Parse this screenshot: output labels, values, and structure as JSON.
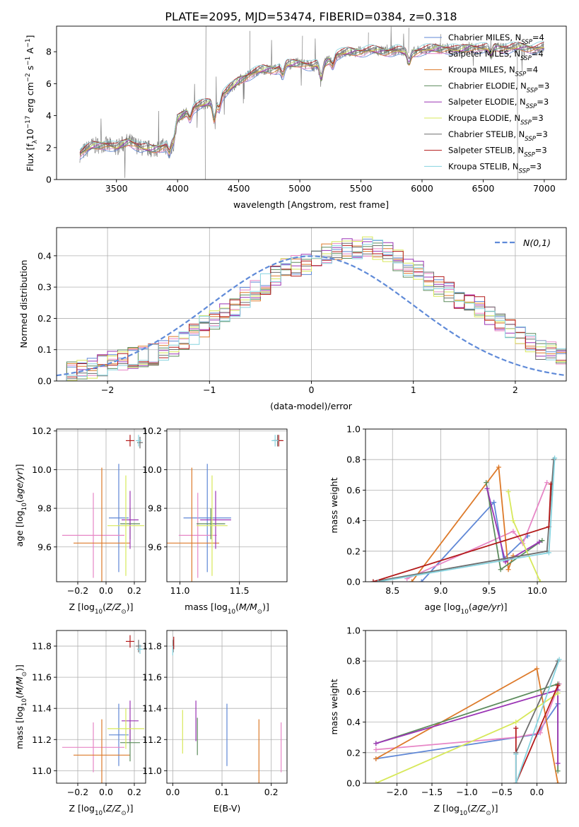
{
  "title": "PLATE=2095, MJD=53474, FIBERID=0384, z=0.318",
  "colors": {
    "Chabrier MILES": "#5f87d6",
    "Salpeter MILES": "#e786c6",
    "Kroupa MILES": "#dd7a2a",
    "Chabrier ELODIE": "#5d8c5d",
    "Salpeter ELODIE": "#9b35b5",
    "Kroupa ELODIE": "#d7e85a",
    "Chabrier STELIB": "#6e6e6e",
    "Salpeter STELIB": "#b31a1a",
    "Kroupa STELIB": "#86d3df",
    "data": "#808080",
    "normal": "#5f8ad8"
  },
  "legend": [
    {
      "model": "Chabrier MILES",
      "prefix": "Chabrier MILES, N",
      "sub": "SSP",
      "suffix": "=4"
    },
    {
      "model": "Salpeter MILES",
      "prefix": "Salpeter MILES, N",
      "sub": "SSP",
      "suffix": "=4"
    },
    {
      "model": "Kroupa MILES",
      "prefix": "Kroupa MILES, N",
      "sub": "SSP",
      "suffix": "=4"
    },
    {
      "model": "Chabrier ELODIE",
      "prefix": "Chabrier ELODIE, N",
      "sub": "SSP",
      "suffix": "=3"
    },
    {
      "model": "Salpeter ELODIE",
      "prefix": "Salpeter ELODIE, N",
      "sub": "SSP",
      "suffix": "=3"
    },
    {
      "model": "Kroupa ELODIE",
      "prefix": "Kroupa ELODIE, N",
      "sub": "SSP",
      "suffix": "=3"
    },
    {
      "model": "Chabrier STELIB",
      "prefix": "Chabrier STELIB, N",
      "sub": "SSP",
      "suffix": "=3"
    },
    {
      "model": "Salpeter STELIB",
      "prefix": "Salpeter STELIB, N",
      "sub": "SSP",
      "suffix": "=3"
    },
    {
      "model": "Kroupa STELIB",
      "prefix": "Kroupa STELIB, N",
      "sub": "SSP",
      "suffix": "=3"
    }
  ],
  "chart_data": [
    {
      "id": "spectrum",
      "type": "line",
      "xlabel": "wavelength [Angstrom, rest frame]",
      "ylabel": "Flux [f_λ 10^-17 erg cm^-2 s^-1 A^-1]",
      "xlim": [
        3010,
        7180
      ],
      "ylim": [
        0,
        9.6
      ],
      "xticks": [
        3500,
        4000,
        4500,
        5000,
        5500,
        6000,
        6500,
        7000
      ],
      "yticks": [
        0,
        2,
        4,
        6,
        8
      ],
      "continuum": [
        [
          3200,
          1.6
        ],
        [
          3300,
          2.1
        ],
        [
          3400,
          2.2
        ],
        [
          3500,
          2.0
        ],
        [
          3600,
          2.4
        ],
        [
          3700,
          2.0
        ],
        [
          3800,
          1.9
        ],
        [
          3900,
          2.1
        ],
        [
          3950,
          2.7
        ],
        [
          4000,
          3.8
        ],
        [
          4100,
          4.4
        ],
        [
          4200,
          4.7
        ],
        [
          4300,
          4.9
        ],
        [
          4400,
          5.5
        ],
        [
          4500,
          6.2
        ],
        [
          4600,
          6.6
        ],
        [
          4700,
          6.9
        ],
        [
          4800,
          6.9
        ],
        [
          4900,
          7.2
        ],
        [
          5000,
          7.3
        ],
        [
          5100,
          7.1
        ],
        [
          5200,
          7.3
        ],
        [
          5300,
          7.8
        ],
        [
          5400,
          8.0
        ],
        [
          5500,
          8.0
        ],
        [
          5600,
          8.1
        ],
        [
          5700,
          8.0
        ],
        [
          5800,
          8.1
        ],
        [
          5900,
          7.9
        ],
        [
          6000,
          8.1
        ],
        [
          6100,
          8.2
        ],
        [
          6200,
          8.2
        ],
        [
          6300,
          8.1
        ],
        [
          6400,
          8.3
        ],
        [
          6500,
          8.2
        ],
        [
          6600,
          8.3
        ],
        [
          6700,
          8.2
        ],
        [
          6800,
          8.3
        ],
        [
          6900,
          8.2
        ],
        [
          7000,
          8.3
        ]
      ],
      "absorption": [
        [
          3934,
          0.9
        ],
        [
          3968,
          0.8
        ],
        [
          4102,
          0.6
        ],
        [
          4300,
          1.2
        ],
        [
          4340,
          0.7
        ],
        [
          4861,
          0.6
        ],
        [
          5175,
          1.0
        ],
        [
          5270,
          0.5
        ],
        [
          5893,
          0.6
        ],
        [
          6563,
          0.5
        ]
      ],
      "spikes": [
        [
          4230,
          9.6
        ],
        [
          4225,
          0.0
        ],
        [
          5020,
          9.0
        ],
        [
          6780,
          0.0
        ],
        [
          4590,
          9.3
        ],
        [
          5560,
          9.2
        ],
        [
          5890,
          9.5
        ],
        [
          6150,
          9.1
        ]
      ]
    },
    {
      "id": "residuals",
      "type": "histogram",
      "xlabel": "(data-model)/error",
      "ylabel": "Normed distribution",
      "xlim": [
        -2.5,
        2.5
      ],
      "ylim": [
        0,
        0.49
      ],
      "xticks": [
        -2,
        -1,
        0,
        1,
        2
      ],
      "yticks": [
        0,
        0.1,
        0.2,
        0.3,
        0.4
      ],
      "bin_width": 0.1,
      "legend_label": "N(0,1)",
      "base_bins": [
        0.02,
        0.03,
        0.035,
        0.04,
        0.05,
        0.06,
        0.065,
        0.075,
        0.08,
        0.085,
        0.095,
        0.11,
        0.13,
        0.15,
        0.175,
        0.19,
        0.215,
        0.24,
        0.265,
        0.29,
        0.31,
        0.335,
        0.36,
        0.37,
        0.375,
        0.39,
        0.41,
        0.42,
        0.42,
        0.425,
        0.43,
        0.42,
        0.41,
        0.385,
        0.365,
        0.35,
        0.32,
        0.3,
        0.285,
        0.265,
        0.25,
        0.235,
        0.215,
        0.185,
        0.17,
        0.14,
        0.12,
        0.1,
        0.09,
        0.075
      ]
    },
    {
      "id": "age-Z",
      "type": "errorbar",
      "xlabel": "Z [log10(Z/Z⊙)]",
      "ylabel": "age [log10(age/yr)]",
      "xlim": [
        -0.35,
        0.28
      ],
      "ylim": [
        9.42,
        10.21
      ],
      "xticks": [
        -0.2,
        0.0,
        0.2
      ],
      "yticks": [
        9.6,
        9.8,
        10.0,
        10.2
      ],
      "points": [
        {
          "model": "Chabrier MILES",
          "x": 0.09,
          "y": 9.75,
          "xerr": 0.07,
          "yerr": 0.28
        },
        {
          "model": "Salpeter MILES",
          "x": -0.09,
          "y": 9.66,
          "xerr": 0.22,
          "yerr": 0.22
        },
        {
          "model": "Kroupa MILES",
          "x": -0.03,
          "y": 9.62,
          "xerr": 0.2,
          "yerr": 0.39
        },
        {
          "model": "Chabrier ELODIE",
          "x": 0.17,
          "y": 9.72,
          "xerr": 0.07,
          "yerr": 0.08
        },
        {
          "model": "Salpeter ELODIE",
          "x": 0.17,
          "y": 9.74,
          "xerr": 0.06,
          "yerr": 0.15
        },
        {
          "model": "Kroupa ELODIE",
          "x": 0.14,
          "y": 9.71,
          "xerr": 0.13,
          "yerr": 0.26
        },
        {
          "model": "Chabrier STELIB",
          "x": 0.24,
          "y": 10.14,
          "xerr": 0.02,
          "yerr": 0.03
        },
        {
          "model": "Salpeter STELIB",
          "x": 0.17,
          "y": 10.15,
          "xerr": 0.03,
          "yerr": 0.03
        },
        {
          "model": "Kroupa STELIB",
          "x": 0.23,
          "y": 10.15,
          "xerr": 0.02,
          "yerr": 0.03
        }
      ]
    },
    {
      "id": "age-mass",
      "type": "errorbar",
      "xlabel": "mass [log10(M/M⊙)]",
      "ylabel": "",
      "xlim": [
        10.89,
        11.9
      ],
      "ylim": [
        9.42,
        10.21
      ],
      "xticks": [
        11.0,
        11.5
      ],
      "yticks": [
        9.6,
        9.8,
        10.0,
        10.2
      ],
      "points": [
        {
          "model": "Chabrier MILES",
          "x": 11.23,
          "y": 9.75,
          "xerr": 0.2,
          "yerr": 0.28
        },
        {
          "model": "Salpeter MILES",
          "x": 11.15,
          "y": 9.66,
          "xerr": 0.16,
          "yerr": 0.22
        },
        {
          "model": "Kroupa MILES",
          "x": 11.1,
          "y": 9.62,
          "xerr": 0.23,
          "yerr": 0.39
        },
        {
          "model": "Chabrier ELODIE",
          "x": 11.26,
          "y": 9.72,
          "xerr": 0.12,
          "yerr": 0.08
        },
        {
          "model": "Salpeter ELODIE",
          "x": 11.3,
          "y": 9.74,
          "xerr": 0.13,
          "yerr": 0.15
        },
        {
          "model": "Kroupa ELODIE",
          "x": 11.27,
          "y": 9.71,
          "xerr": 0.13,
          "yerr": 0.26
        },
        {
          "model": "Chabrier STELIB",
          "x": 11.82,
          "y": 10.15,
          "xerr": 0.04,
          "yerr": 0.03
        },
        {
          "model": "Salpeter STELIB",
          "x": 11.83,
          "y": 10.15,
          "xerr": 0.04,
          "yerr": 0.03
        },
        {
          "model": "Kroupa STELIB",
          "x": 11.8,
          "y": 10.15,
          "xerr": 0.03,
          "yerr": 0.03
        }
      ]
    },
    {
      "id": "massweight-age",
      "type": "line",
      "xlabel": "age [log10(age/yr)]",
      "ylabel": "mass weight",
      "xlim": [
        8.22,
        10.3
      ],
      "ylim": [
        0,
        1.0
      ],
      "xticks": [
        8.5,
        9.0,
        9.5,
        10.0
      ],
      "yticks": [
        0,
        0.2,
        0.4,
        0.6,
        0.8,
        1.0
      ],
      "series": [
        {
          "model": "Chabrier MILES",
          "points": [
            [
              8.8,
              0.0
            ],
            [
              9.55,
              0.52
            ],
            [
              9.65,
              0.15
            ],
            [
              9.9,
              0.3
            ]
          ]
        },
        {
          "model": "Salpeter MILES",
          "points": [
            [
              8.65,
              0.02
            ],
            [
              9.75,
              0.33
            ],
            [
              9.85,
              0.25
            ],
            [
              10.1,
              0.65
            ]
          ]
        },
        {
          "model": "Kroupa MILES",
          "points": [
            [
              8.7,
              0.0
            ],
            [
              9.6,
              0.75
            ],
            [
              9.7,
              0.08
            ],
            [
              9.75,
              0.17
            ]
          ]
        },
        {
          "model": "Chabrier ELODIE",
          "points": [
            [
              9.47,
              0.65
            ],
            [
              9.62,
              0.08
            ],
            [
              10.05,
              0.27
            ]
          ]
        },
        {
          "model": "Salpeter ELODIE",
          "points": [
            [
              9.48,
              0.61
            ],
            [
              9.67,
              0.13
            ],
            [
              10.02,
              0.26
            ]
          ]
        },
        {
          "model": "Kroupa ELODIE",
          "points": [
            [
              9.7,
              0.59
            ],
            [
              9.75,
              0.4
            ],
            [
              10.03,
              0.0
            ]
          ]
        },
        {
          "model": "Chabrier STELIB",
          "points": [
            [
              8.3,
              0.0
            ],
            [
              10.1,
              0.2
            ],
            [
              10.17,
              0.8
            ]
          ]
        },
        {
          "model": "Salpeter STELIB",
          "points": [
            [
              8.3,
              0.0
            ],
            [
              10.12,
              0.36
            ],
            [
              10.14,
              0.64
            ]
          ]
        },
        {
          "model": "Kroupa STELIB",
          "points": [
            [
              8.35,
              0.0
            ],
            [
              10.12,
              0.19
            ],
            [
              10.18,
              0.81
            ]
          ]
        }
      ]
    },
    {
      "id": "mass-Z",
      "type": "errorbar",
      "xlabel": "Z [log10(Z/Z⊙)]",
      "ylabel": "mass [log10(M/M⊙)]",
      "xlim": [
        -0.35,
        0.28
      ],
      "ylim": [
        10.92,
        11.9
      ],
      "xticks": [
        -0.2,
        0.0,
        0.2
      ],
      "yticks": [
        11.0,
        11.2,
        11.4,
        11.6,
        11.8
      ],
      "points": [
        {
          "model": "Chabrier MILES",
          "x": 0.09,
          "y": 11.23,
          "xerr": 0.07,
          "yerr": 0.2
        },
        {
          "model": "Salpeter MILES",
          "x": -0.09,
          "y": 11.15,
          "xerr": 0.22,
          "yerr": 0.16
        },
        {
          "model": "Kroupa MILES",
          "x": -0.03,
          "y": 11.1,
          "xerr": 0.2,
          "yerr": 0.23
        },
        {
          "model": "Chabrier ELODIE",
          "x": 0.17,
          "y": 11.18,
          "xerr": 0.07,
          "yerr": 0.12
        },
        {
          "model": "Salpeter ELODIE",
          "x": 0.17,
          "y": 11.32,
          "xerr": 0.06,
          "yerr": 0.13
        },
        {
          "model": "Kroupa ELODIE",
          "x": 0.14,
          "y": 11.27,
          "xerr": 0.13,
          "yerr": 0.13
        },
        {
          "model": "Chabrier STELIB",
          "x": 0.23,
          "y": 11.8,
          "xerr": 0.02,
          "yerr": 0.04
        },
        {
          "model": "Salpeter STELIB",
          "x": 0.17,
          "y": 11.83,
          "xerr": 0.03,
          "yerr": 0.04
        },
        {
          "model": "Kroupa STELIB",
          "x": 0.24,
          "y": 11.78,
          "xerr": 0.02,
          "yerr": 0.03
        }
      ]
    },
    {
      "id": "mass-ebv",
      "type": "errorbar",
      "xlabel": "E(B-V)",
      "ylabel": "",
      "xlim": [
        -0.012,
        0.232
      ],
      "ylim": [
        10.92,
        11.9
      ],
      "xticks": [
        0.0,
        0.1,
        0.2
      ],
      "yticks": [
        11.0,
        11.2,
        11.4,
        11.6,
        11.8
      ],
      "points": [
        {
          "model": "Chabrier MILES",
          "x": 0.11,
          "y": 11.23,
          "xerr": 0,
          "yerr": 0.2
        },
        {
          "model": "Salpeter MILES",
          "x": 0.22,
          "y": 11.15,
          "xerr": 0,
          "yerr": 0.16
        },
        {
          "model": "Kroupa MILES",
          "x": 0.175,
          "y": 11.1,
          "xerr": 0,
          "yerr": 0.23
        },
        {
          "model": "Chabrier ELODIE",
          "x": 0.05,
          "y": 11.22,
          "xerr": 0,
          "yerr": 0.12
        },
        {
          "model": "Salpeter ELODIE",
          "x": 0.047,
          "y": 11.32,
          "xerr": 0,
          "yerr": 0.13
        },
        {
          "model": "Kroupa ELODIE",
          "x": 0.02,
          "y": 11.25,
          "xerr": 0,
          "yerr": 0.14
        },
        {
          "model": "Chabrier STELIB",
          "x": 0.001,
          "y": 11.8,
          "xerr": 0,
          "yerr": 0.04
        },
        {
          "model": "Salpeter STELIB",
          "x": 0.002,
          "y": 11.82,
          "xerr": 0,
          "yerr": 0.04
        },
        {
          "model": "Kroupa STELIB",
          "x": 0.0,
          "y": 11.77,
          "xerr": 0,
          "yerr": 0.03
        }
      ]
    },
    {
      "id": "massweight-Z",
      "type": "line",
      "xlabel": "Z [log10(Z/Z⊙)]",
      "ylabel": "mass weight",
      "xlim": [
        -2.45,
        0.42
      ],
      "ylim": [
        0,
        1.0
      ],
      "xticks": [
        -2.0,
        -1.5,
        -1.0,
        -0.5,
        0.0
      ],
      "yticks": [
        0,
        0.2,
        0.4,
        0.6,
        0.8,
        1.0
      ],
      "series": [
        {
          "model": "Chabrier MILES",
          "points": [
            [
              -2.3,
              0.16
            ],
            [
              0.0,
              0.32
            ],
            [
              0.3,
              0.52
            ]
          ]
        },
        {
          "model": "Salpeter MILES",
          "points": [
            [
              -2.3,
              0.22
            ],
            [
              -0.3,
              0.3
            ],
            [
              0.05,
              0.33
            ],
            [
              0.32,
              0.65
            ]
          ]
        },
        {
          "model": "Kroupa MILES",
          "points": [
            [
              -2.3,
              0.16
            ],
            [
              0.0,
              0.75
            ],
            [
              0.3,
              0.0
            ]
          ]
        },
        {
          "model": "Chabrier ELODIE",
          "points": [
            [
              -2.3,
              0.26
            ],
            [
              0.3,
              0.65
            ],
            [
              0.3,
              0.08
            ]
          ]
        },
        {
          "model": "Salpeter ELODIE",
          "points": [
            [
              -2.3,
              0.26
            ],
            [
              0.3,
              0.61
            ],
            [
              0.3,
              0.13
            ]
          ]
        },
        {
          "model": "Kroupa ELODIE",
          "points": [
            [
              -2.3,
              0.0
            ],
            [
              -0.3,
              0.4
            ],
            [
              0.3,
              0.59
            ]
          ]
        },
        {
          "model": "Chabrier STELIB",
          "points": [
            [
              -0.3,
              0.2
            ],
            [
              0.3,
              0.8
            ]
          ]
        },
        {
          "model": "Salpeter STELIB",
          "points": [
            [
              -0.3,
              0.36
            ],
            [
              -0.3,
              0.0
            ],
            [
              0.3,
              0.64
            ]
          ]
        },
        {
          "model": "Kroupa STELIB",
          "points": [
            [
              -0.3,
              0.19
            ],
            [
              -0.3,
              0.0
            ],
            [
              0.32,
              0.81
            ]
          ]
        }
      ]
    }
  ]
}
